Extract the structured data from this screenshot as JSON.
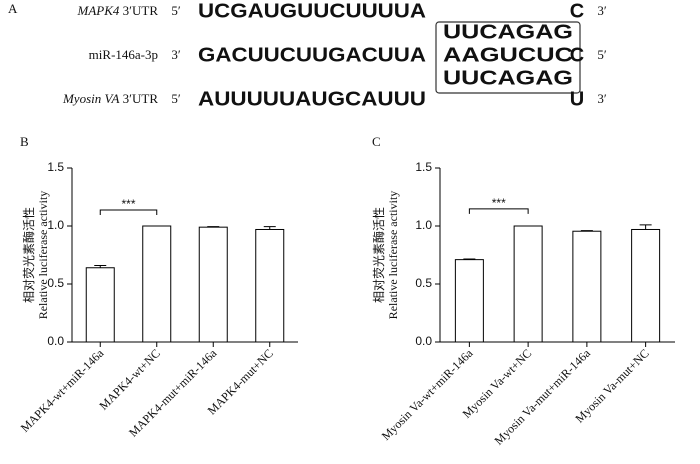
{
  "panel_a": {
    "label": "A",
    "rows": [
      {
        "gene": "MAPK4",
        "region": " 3′UTR",
        "start": "5′",
        "seq": "UCGAUGUUCUUUUA",
        "site": "UUCAGAG",
        "last": "C",
        "end": "3′"
      },
      {
        "gene": "miR-146a-3p",
        "region": "",
        "start": "3′",
        "seq": "GACUUCUUGACUUA",
        "site": "AAGUCUC",
        "last": "C",
        "end": "5′"
      },
      {
        "gene": "Myosin VA",
        "region": " 3′UTR",
        "start": "5′",
        "seq": "AUUUUUAUGCAUUU",
        "site": "UUCAGAG",
        "last": "U",
        "end": "3′"
      }
    ]
  },
  "chart_data": [
    {
      "type": "bar",
      "panel": "B",
      "y_label": [
        "相对荧光素酶活性",
        "Relative luciferase activity"
      ],
      "categories": [
        "MAPK4-wt+miR-146a",
        "MAPK4-wt+NC",
        "MAPK4-mut+miR-146a",
        "MAPK4-mut+NC"
      ],
      "values": [
        0.64,
        1.0,
        0.99,
        0.97
      ],
      "errors": [
        0.02,
        0.0,
        0.005,
        0.025
      ],
      "color": "#ffffff",
      "ylim": [
        0,
        1.5
      ],
      "yticks": [
        {
          "value": 0,
          "label": "0.0"
        },
        {
          "value": 0.5,
          "label": "0.5"
        },
        {
          "value": 1,
          "label": "1.0"
        },
        {
          "value": 1.5,
          "label": "1.5"
        }
      ],
      "annotations": [
        {
          "text": "***",
          "between": [
            "MAPK4-wt+miR-146a",
            "MAPK4-wt+NC"
          ]
        }
      ]
    },
    {
      "type": "bar",
      "panel": "C",
      "y_label": [
        "相对荧光素酶活性",
        "Relative luciferase activity"
      ],
      "categories": [
        "Myosin Va-wt+miR-146a",
        "Myosin Va-wt+NC",
        "Myosin Va-mut+miR-146a",
        "Myosin Va-mut+NC"
      ],
      "values": [
        0.71,
        1.0,
        0.955,
        0.97
      ],
      "errors": [
        0.005,
        0.0,
        0.005,
        0.04
      ],
      "color": "#ffffff",
      "ylim": [
        0,
        1.5
      ],
      "yticks": [
        {
          "value": 0,
          "label": "0.0"
        },
        {
          "value": 0.5,
          "label": "0.5"
        },
        {
          "value": 1,
          "label": "1.0"
        },
        {
          "value": 1.5,
          "label": "1.5"
        }
      ],
      "annotations": [
        {
          "text": "***",
          "between": [
            "Myosin Va-wt+miR-146a",
            "Myosin Va-wt+NC"
          ]
        }
      ]
    }
  ]
}
